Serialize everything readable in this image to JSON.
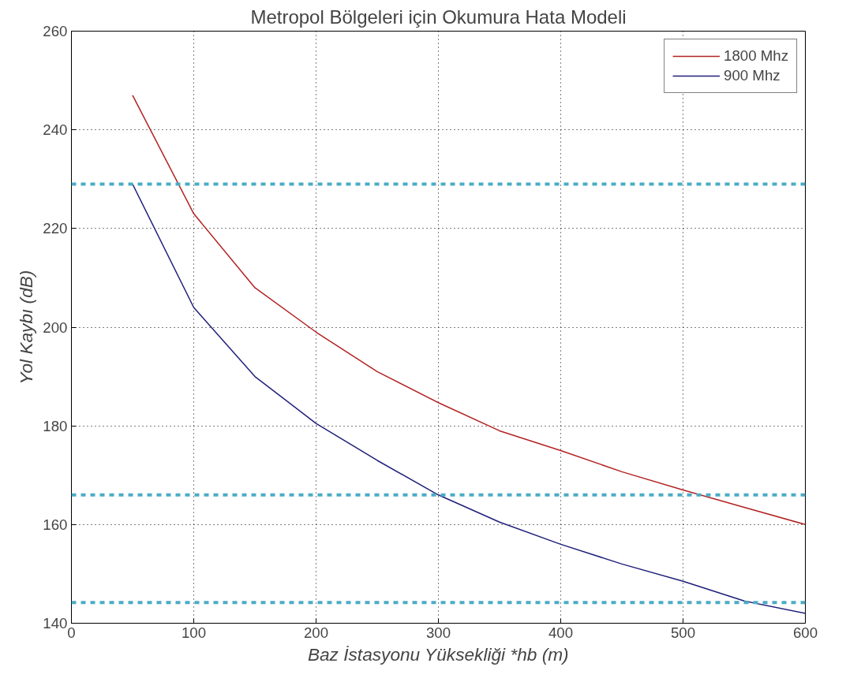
{
  "chart_data": {
    "type": "line",
    "title": "Metropol Bölgeleri için Okumura Hata Modeli",
    "xlabel": "Baz İstasyonu Yüksekliği *hb (m)",
    "ylabel": "Yol Kaybı (dB)",
    "x": [
      50,
      100,
      150,
      200,
      250,
      300,
      350,
      400,
      450,
      500,
      550,
      600
    ],
    "series": [
      {
        "name": "1800 Mhz",
        "color": "#b22222",
        "values": [
          247,
          223,
          208,
          199,
          191,
          184.7,
          179,
          175,
          170.7,
          167,
          163.5,
          160
        ]
      },
      {
        "name": "900 Mhz",
        "color": "#1f1f7a",
        "values": [
          229,
          204,
          190,
          180.5,
          173,
          166,
          160.5,
          156,
          152,
          148.5,
          144.5,
          142
        ]
      }
    ],
    "xlim": [
      0,
      600
    ],
    "ylim": [
      140,
      260
    ],
    "xticks": [
      0,
      100,
      200,
      300,
      400,
      500,
      600
    ],
    "yticks": [
      140,
      160,
      180,
      200,
      220,
      240,
      260
    ],
    "ref_lines": [
      {
        "axis": "y",
        "value": 229,
        "color": "#4bacc6",
        "line_style": "dashed"
      },
      {
        "axis": "y",
        "value": 166,
        "color": "#4bacc6",
        "line_style": "dashed"
      },
      {
        "axis": "y",
        "value": 144.2,
        "color": "#4bacc6",
        "line_style": "dashed"
      }
    ],
    "grid": true,
    "legend": "top right",
    "line_style": "solid",
    "marker": "none"
  }
}
